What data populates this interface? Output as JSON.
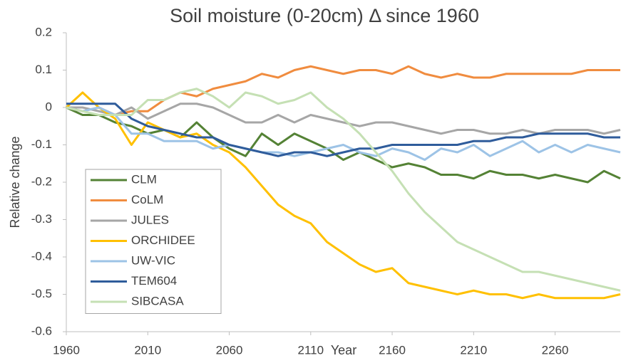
{
  "chart_data": {
    "type": "line",
    "title": "Soil moisture (0-20cm) Δ since 1960",
    "x_label": "Year",
    "y_label": "Relative change",
    "x": [
      1960,
      1970,
      1980,
      1990,
      2000,
      2010,
      2020,
      2030,
      2040,
      2050,
      2060,
      2070,
      2080,
      2090,
      2100,
      2110,
      2120,
      2130,
      2140,
      2150,
      2160,
      2170,
      2180,
      2190,
      2200,
      2210,
      2220,
      2230,
      2240,
      2250,
      2260,
      2270,
      2280,
      2290,
      2300
    ],
    "xlim": [
      1960,
      2300
    ],
    "xticks": [
      1960,
      2010,
      2060,
      2110,
      2160,
      2210,
      2260
    ],
    "ylim": [
      -0.6,
      0.2
    ],
    "yticks": [
      -0.6,
      -0.5,
      -0.4,
      -0.3,
      -0.2,
      -0.1,
      0,
      0.1,
      0.2
    ],
    "grid": false,
    "legend": "lower left",
    "series": [
      {
        "name": "CLM",
        "color": "#548235",
        "values": [
          0,
          -0.02,
          -0.02,
          -0.04,
          -0.05,
          -0.07,
          -0.06,
          -0.08,
          -0.04,
          -0.08,
          -0.11,
          -0.13,
          -0.07,
          -0.1,
          -0.07,
          -0.09,
          -0.11,
          -0.14,
          -0.12,
          -0.14,
          -0.16,
          -0.15,
          -0.16,
          -0.18,
          -0.18,
          -0.19,
          -0.17,
          -0.18,
          -0.18,
          -0.19,
          -0.18,
          -0.19,
          -0.2,
          -0.17,
          -0.19
        ]
      },
      {
        "name": "CoLM",
        "color": "#f08c3f",
        "values": [
          0,
          -0.01,
          0,
          -0.02,
          -0.01,
          -0.01,
          0.02,
          0.04,
          0.03,
          0.05,
          0.06,
          0.07,
          0.09,
          0.08,
          0.1,
          0.11,
          0.1,
          0.09,
          0.1,
          0.1,
          0.09,
          0.11,
          0.09,
          0.08,
          0.09,
          0.08,
          0.08,
          0.09,
          0.09,
          0.09,
          0.09,
          0.09,
          0.1,
          0.1,
          0.1
        ]
      },
      {
        "name": "JULES",
        "color": "#a6a6a6",
        "values": [
          0,
          0,
          -0.01,
          -0.02,
          0,
          -0.03,
          -0.01,
          0.01,
          0.01,
          0,
          -0.02,
          -0.04,
          -0.04,
          -0.02,
          -0.04,
          -0.02,
          -0.03,
          -0.04,
          -0.05,
          -0.04,
          -0.04,
          -0.05,
          -0.06,
          -0.07,
          -0.06,
          -0.06,
          -0.07,
          -0.07,
          -0.06,
          -0.07,
          -0.06,
          -0.06,
          -0.06,
          -0.07,
          -0.06
        ]
      },
      {
        "name": "ORCHIDEE",
        "color": "#ffc000",
        "values": [
          0,
          0.04,
          0,
          -0.03,
          -0.1,
          -0.04,
          -0.06,
          -0.08,
          -0.07,
          -0.1,
          -0.12,
          -0.16,
          -0.21,
          -0.26,
          -0.29,
          -0.31,
          -0.36,
          -0.39,
          -0.42,
          -0.44,
          -0.43,
          -0.47,
          -0.48,
          -0.49,
          -0.5,
          -0.49,
          -0.5,
          -0.5,
          -0.51,
          -0.5,
          -0.51,
          -0.51,
          -0.51,
          -0.51,
          -0.5
        ]
      },
      {
        "name": "UW-VIC",
        "color": "#9dc3e6",
        "values": [
          0,
          -0.01,
          0,
          -0.02,
          -0.07,
          -0.07,
          -0.09,
          -0.09,
          -0.09,
          -0.11,
          -0.1,
          -0.11,
          -0.12,
          -0.12,
          -0.13,
          -0.12,
          -0.11,
          -0.1,
          -0.12,
          -0.13,
          -0.11,
          -0.12,
          -0.14,
          -0.11,
          -0.12,
          -0.1,
          -0.13,
          -0.11,
          -0.09,
          -0.12,
          -0.1,
          -0.12,
          -0.1,
          -0.11,
          -0.12
        ]
      },
      {
        "name": "TEM604",
        "color": "#2f5c9b",
        "values": [
          0.01,
          0.01,
          0.01,
          0.01,
          -0.03,
          -0.05,
          -0.06,
          -0.07,
          -0.08,
          -0.08,
          -0.1,
          -0.11,
          -0.12,
          -0.13,
          -0.12,
          -0.12,
          -0.13,
          -0.12,
          -0.11,
          -0.11,
          -0.1,
          -0.1,
          -0.1,
          -0.1,
          -0.1,
          -0.09,
          -0.09,
          -0.08,
          -0.08,
          -0.07,
          -0.07,
          -0.07,
          -0.07,
          -0.08,
          -0.08
        ]
      },
      {
        "name": "SIBCASA",
        "color": "#c5e0b4",
        "values": [
          0,
          -0.01,
          -0.02,
          -0.02,
          -0.02,
          0.02,
          0.02,
          0.04,
          0.05,
          0.03,
          0,
          0.04,
          0.03,
          0.01,
          0.02,
          0.04,
          0,
          -0.03,
          -0.07,
          -0.12,
          -0.17,
          -0.23,
          -0.28,
          -0.32,
          -0.36,
          -0.38,
          -0.4,
          -0.42,
          -0.44,
          -0.44,
          -0.45,
          -0.46,
          -0.47,
          -0.48,
          -0.49
        ]
      }
    ]
  }
}
